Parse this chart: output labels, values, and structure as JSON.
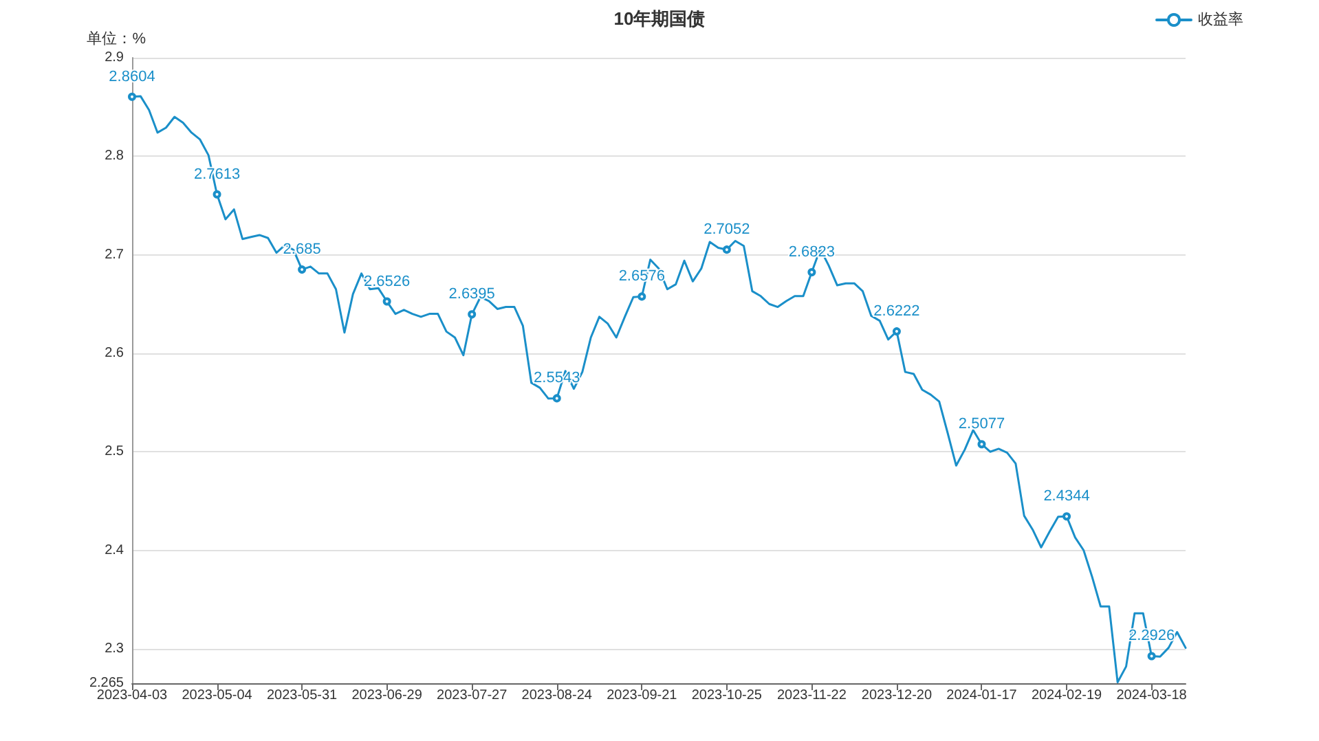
{
  "chart_data": {
    "type": "line",
    "title": "10年期国债",
    "ylabel": "单位：%",
    "categories": [
      "2023-04-03",
      null,
      null,
      null,
      null,
      null,
      null,
      null,
      null,
      null,
      "2023-05-04",
      null,
      null,
      null,
      null,
      null,
      null,
      null,
      null,
      null,
      "2023-05-31",
      null,
      null,
      null,
      null,
      null,
      null,
      null,
      null,
      null,
      "2023-06-29",
      null,
      null,
      null,
      null,
      null,
      null,
      null,
      null,
      null,
      "2023-07-27",
      null,
      null,
      null,
      null,
      null,
      null,
      null,
      null,
      null,
      "2023-08-24",
      null,
      null,
      null,
      null,
      null,
      null,
      null,
      null,
      null,
      "2023-09-21",
      null,
      null,
      null,
      null,
      null,
      null,
      null,
      null,
      null,
      "2023-10-25",
      null,
      null,
      null,
      null,
      null,
      null,
      null,
      null,
      null,
      "2023-11-22",
      null,
      null,
      null,
      null,
      null,
      null,
      null,
      null,
      null,
      "2023-12-20",
      null,
      null,
      null,
      null,
      null,
      null,
      null,
      null,
      null,
      "2024-01-17",
      null,
      null,
      null,
      null,
      null,
      null,
      null,
      null,
      null,
      "2024-02-19",
      null,
      null,
      null,
      null,
      null,
      null,
      null,
      null,
      null,
      "2024-03-18",
      null,
      null,
      null,
      null
    ],
    "series": [
      {
        "name": "收益率",
        "color": "#1a8fc9",
        "values": [
          2.8604,
          2.861,
          2.847,
          2.824,
          2.829,
          2.84,
          2.834,
          2.824,
          2.817,
          2.801,
          2.7613,
          2.736,
          2.746,
          2.716,
          2.718,
          2.72,
          2.717,
          2.702,
          2.71,
          2.705,
          2.685,
          2.688,
          2.681,
          2.681,
          2.665,
          2.621,
          2.66,
          2.681,
          2.665,
          2.666,
          2.6526,
          2.64,
          2.644,
          2.64,
          2.637,
          2.64,
          2.64,
          2.622,
          2.616,
          2.598,
          2.6395,
          2.657,
          2.653,
          2.645,
          2.647,
          2.647,
          2.628,
          2.57,
          2.565,
          2.554,
          2.5543,
          2.582,
          2.564,
          2.581,
          2.616,
          2.637,
          2.63,
          2.616,
          2.637,
          2.657,
          2.6576,
          2.695,
          2.686,
          2.665,
          2.67,
          2.694,
          2.673,
          2.686,
          2.713,
          2.707,
          2.7052,
          2.714,
          2.709,
          2.663,
          2.658,
          2.65,
          2.647,
          2.653,
          2.658,
          2.658,
          2.6823,
          2.706,
          2.689,
          2.669,
          2.671,
          2.671,
          2.663,
          2.638,
          2.633,
          2.614,
          2.6222,
          2.581,
          2.579,
          2.563,
          2.558,
          2.551,
          2.519,
          2.486,
          2.502,
          2.522,
          2.5077,
          2.5,
          2.503,
          2.499,
          2.488,
          2.435,
          2.421,
          2.403,
          2.419,
          2.434,
          2.4344,
          2.413,
          2.4,
          2.373,
          2.343,
          2.343,
          2.266,
          2.282,
          2.336,
          2.336,
          2.2926,
          2.292,
          2.301,
          2.317,
          2.301
        ],
        "value_labels": [
          "2.8604",
          null,
          null,
          null,
          null,
          null,
          null,
          null,
          null,
          null,
          "2.7613",
          null,
          null,
          null,
          null,
          null,
          null,
          null,
          null,
          null,
          "2.685",
          null,
          null,
          null,
          null,
          null,
          null,
          null,
          null,
          null,
          "2.6526",
          null,
          null,
          null,
          null,
          null,
          null,
          null,
          null,
          null,
          "2.6395",
          null,
          null,
          null,
          null,
          null,
          null,
          null,
          null,
          null,
          "2.5543",
          null,
          null,
          null,
          null,
          null,
          null,
          null,
          null,
          null,
          "2.6576",
          null,
          null,
          null,
          null,
          null,
          null,
          null,
          null,
          null,
          "2.7052",
          null,
          null,
          null,
          null,
          null,
          null,
          null,
          null,
          null,
          "2.6823",
          null,
          null,
          null,
          null,
          null,
          null,
          null,
          null,
          null,
          "2.6222",
          null,
          null,
          null,
          null,
          null,
          null,
          null,
          null,
          null,
          "2.5077",
          null,
          null,
          null,
          null,
          null,
          null,
          null,
          null,
          null,
          "2.4344",
          null,
          null,
          null,
          null,
          null,
          null,
          null,
          null,
          null,
          "2.2926",
          null,
          null,
          null,
          null
        ]
      }
    ],
    "ylim": [
      2.265,
      2.9
    ],
    "yticks": [
      2.265,
      2.3,
      2.4,
      2.5,
      2.6,
      2.7,
      2.8,
      2.9
    ],
    "grid": "y",
    "legend": "top right",
    "line_style": "solid"
  }
}
